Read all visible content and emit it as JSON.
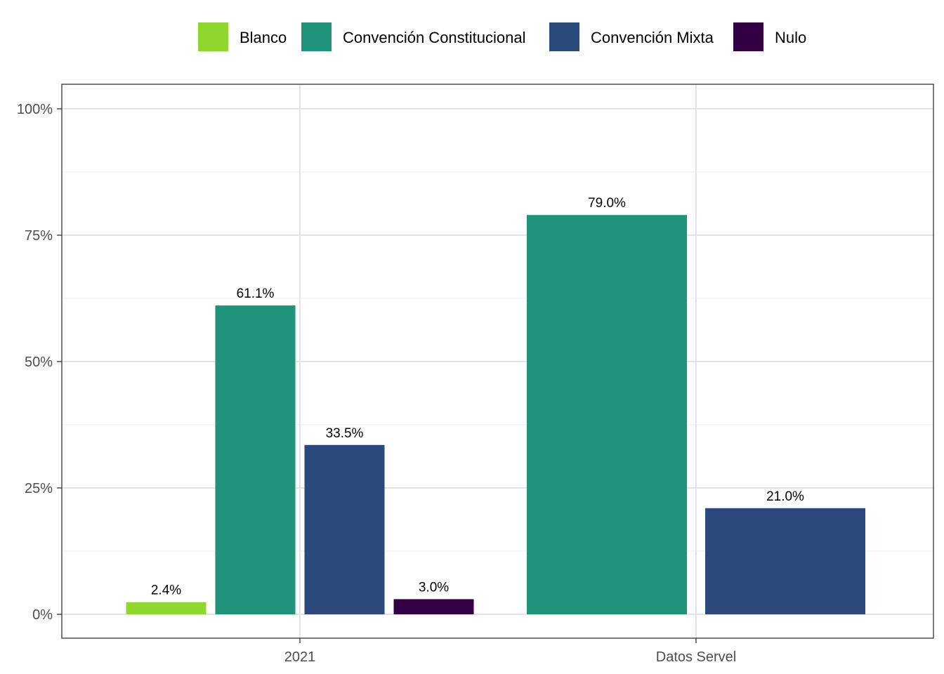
{
  "chart_data": {
    "type": "bar",
    "categories": [
      "2021",
      "Datos Servel"
    ],
    "series": [
      {
        "name": "Blanco",
        "color": "#8fd62f",
        "values": [
          2.4,
          null
        ],
        "labels": [
          "2.4%",
          ""
        ]
      },
      {
        "name": "Convención Constitucional",
        "color": "#20947a",
        "values": [
          61.1,
          79.0
        ],
        "labels": [
          "61.1%",
          "79.0%"
        ]
      },
      {
        "name": "Convención Mixta",
        "color": "#2b4a7b",
        "values": [
          33.5,
          21.0
        ],
        "labels": [
          "33.5%",
          "21.0%"
        ]
      },
      {
        "name": "Nulo",
        "color": "#330044",
        "values": [
          3.0,
          null
        ],
        "labels": [
          "3.0%",
          ""
        ]
      }
    ],
    "title": "",
    "xlabel": "",
    "ylabel": "",
    "ylim": [
      0,
      100
    ],
    "y_ticks": [
      0,
      25,
      50,
      75,
      100
    ],
    "y_tick_labels": [
      "0%",
      "25%",
      "50%",
      "75%",
      "100%"
    ],
    "grid": true,
    "legend_position": "top",
    "dodge_preserve": "single"
  }
}
